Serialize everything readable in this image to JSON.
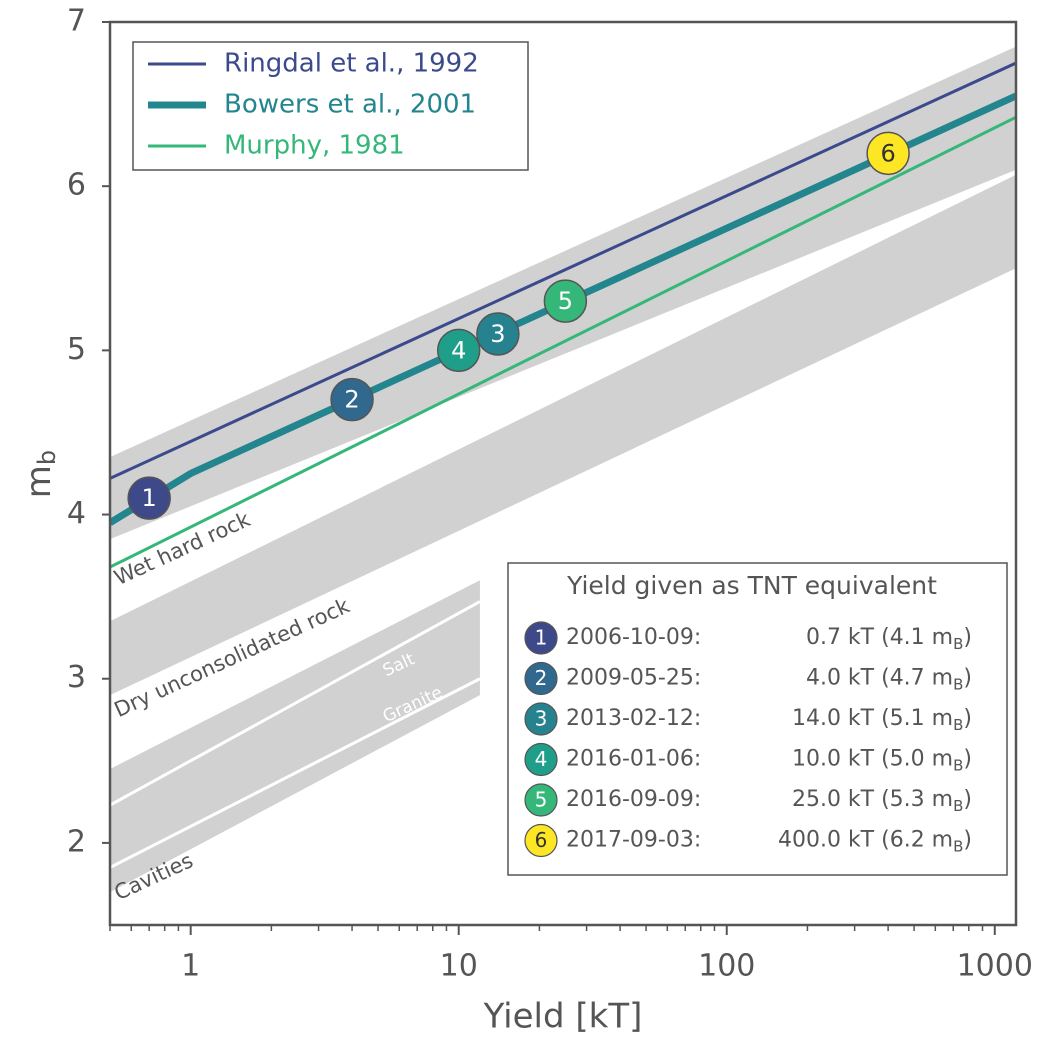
{
  "chart_data": {
    "type": "line",
    "xlabel": "Yield [kT]",
    "ylabel": [
      "m",
      "b"
    ],
    "log_x": true,
    "xlim": [
      0.5,
      1200
    ],
    "ylim": [
      1.5,
      7
    ],
    "xticks": [
      1,
      10,
      100,
      1000
    ],
    "xminorticks": [
      0.5,
      0.6,
      0.7,
      0.8,
      0.9,
      2,
      3,
      4,
      5,
      6,
      7,
      8,
      9,
      20,
      30,
      40,
      50,
      60,
      70,
      80,
      90,
      200,
      300,
      400,
      500,
      600,
      700,
      800,
      900
    ],
    "yticks": [
      2,
      3,
      4,
      5,
      6,
      7
    ],
    "bands": [
      {
        "name": "Wet hard rock",
        "x": [
          0.5,
          1200
        ],
        "lower": [
          3.85,
          6.1
        ],
        "upper": [
          4.35,
          6.85
        ]
      },
      {
        "name": "Dry unconsolidated rock",
        "x": [
          0.5,
          1200
        ],
        "lower": [
          2.9,
          5.5
        ],
        "upper": [
          3.35,
          6.07
        ]
      },
      {
        "name": "Cavities",
        "x": [
          0.5,
          12
        ],
        "lower": [
          1.7,
          2.9
        ],
        "upper": [
          2.45,
          3.6
        ]
      }
    ],
    "reference_lines": [
      {
        "name": "Salt",
        "x": [
          0.5,
          12
        ],
        "values": [
          2.23,
          3.47
        ]
      },
      {
        "name": "Granite",
        "x": [
          0.5,
          12
        ],
        "values": [
          1.85,
          3.0
        ]
      }
    ],
    "series": [
      {
        "name": "Ringdal et al., 1992",
        "color": "#3b4a8c",
        "width": 3,
        "x": [
          0.5,
          1200
        ],
        "values": [
          4.22,
          6.75
        ]
      },
      {
        "name": "Bowers et al., 2001",
        "color": "#23858e",
        "width": 7,
        "x": [
          0.5,
          1,
          1200
        ],
        "values": [
          3.95,
          4.25,
          6.55
        ]
      },
      {
        "name": "Murphy, 1981",
        "color": "#35b779",
        "width": 3,
        "x": [
          0.5,
          1200
        ],
        "values": [
          3.68,
          6.42
        ]
      }
    ],
    "events": {
      "title": "Yield given as TNT equivalent",
      "labels": [
        "1",
        "2",
        "3",
        "4",
        "5",
        "6"
      ],
      "dates": [
        "2006-10-09:",
        "2009-05-25:",
        "2013-02-12:",
        "2016-01-06:",
        "2016-09-09:",
        "2017-09-03:"
      ],
      "x": [
        0.7,
        4.0,
        14.0,
        10.0,
        25.0,
        400.0
      ],
      "values": [
        4.1,
        4.7,
        5.1,
        5.0,
        5.3,
        6.2
      ],
      "value_labels": [
        [
          "0.7 kT (4.1 m",
          "B",
          ")"
        ],
        [
          "4.0 kT (4.7 m",
          "B",
          ")"
        ],
        [
          "14.0 kT (5.1 m",
          "B",
          ")"
        ],
        [
          "10.0 kT (5.0 m",
          "B",
          ")"
        ],
        [
          "25.0 kT (5.3 m",
          "B",
          ")"
        ],
        [
          "400.0 kT (6.2 m",
          "B",
          ")"
        ]
      ],
      "colors": [
        "#3e4989",
        "#31688e",
        "#26828e",
        "#1f9e89",
        "#35b779",
        "#fde725"
      ]
    }
  }
}
